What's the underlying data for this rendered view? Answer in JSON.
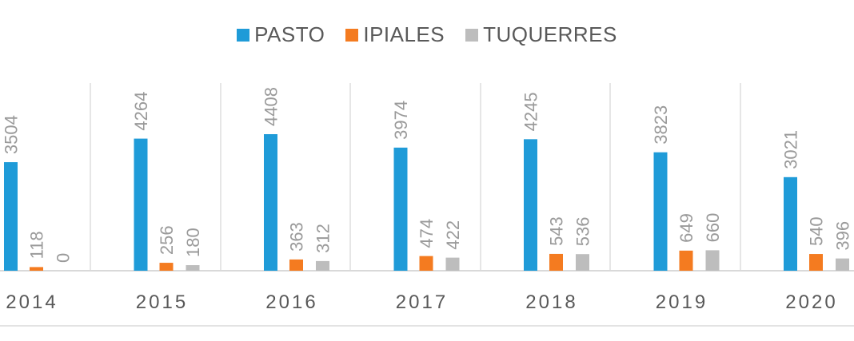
{
  "chart_data": {
    "type": "bar",
    "categories": [
      "2014",
      "2015",
      "2016",
      "2017",
      "2018",
      "2019",
      "2020"
    ],
    "series": [
      {
        "name": "PASTO",
        "values": [
          3504,
          4264,
          4408,
          3974,
          4245,
          3823,
          3021
        ],
        "color": "#1f9bd8"
      },
      {
        "name": "IPIALES",
        "values": [
          118,
          256,
          363,
          474,
          543,
          649,
          540
        ],
        "color": "#f47b20"
      },
      {
        "name": "TUQUERRES",
        "values": [
          0,
          180,
          312,
          422,
          536,
          660,
          396
        ],
        "color": "#bdbdbd"
      }
    ],
    "title": "",
    "xlabel": "",
    "ylabel": "",
    "ylim": [
      0,
      4408
    ],
    "grid": false,
    "legend_position": "top-center",
    "data_labels": true
  }
}
